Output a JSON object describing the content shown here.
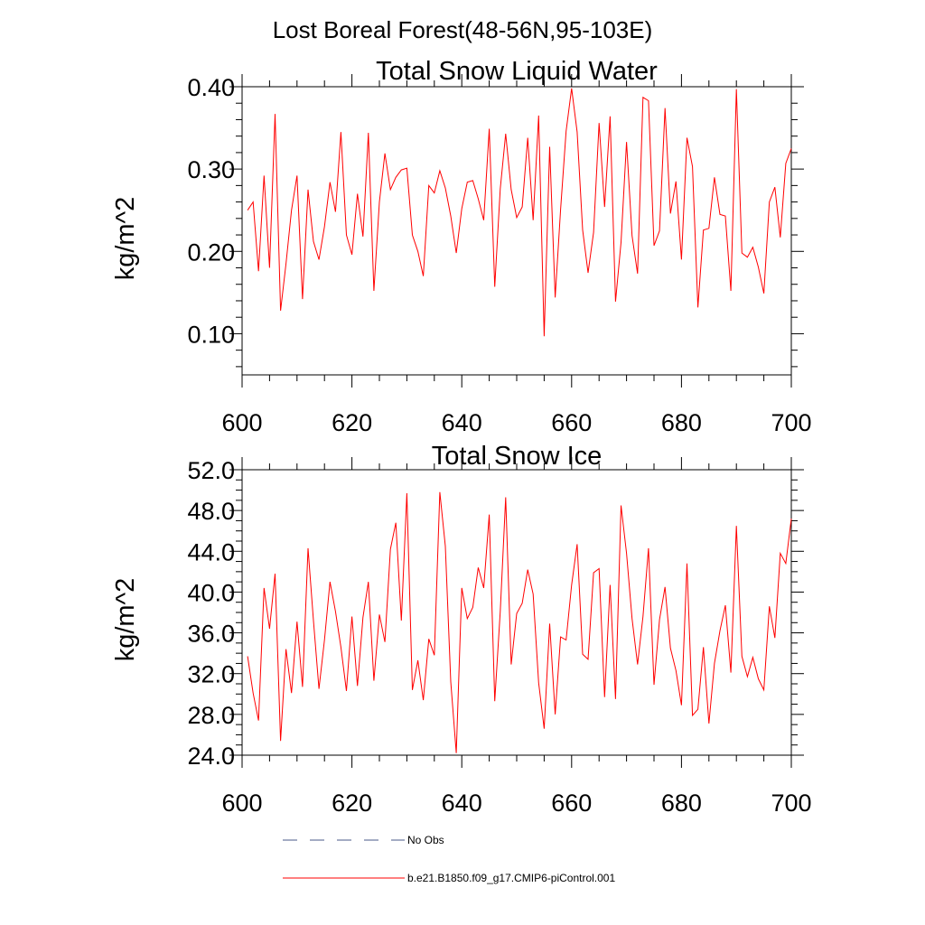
{
  "main_title": "Lost Boreal Forest(48-56N,95-103E)",
  "chart_data": [
    {
      "type": "line",
      "title": "Total Snow Liquid Water",
      "xlabel": "",
      "ylabel": "kg/m^2",
      "xlim": [
        600,
        700
      ],
      "ylim": [
        0.05,
        0.4
      ],
      "x_ticks": [
        600,
        620,
        640,
        660,
        680,
        700
      ],
      "x_tick_labels": [
        "600",
        "620",
        "640",
        "660",
        "680",
        "700"
      ],
      "y_ticks": [
        0.1,
        0.2,
        0.3,
        0.4
      ],
      "y_tick_labels": [
        "0.10",
        "0.20",
        "0.30",
        "0.40"
      ],
      "series": [
        {
          "name": "b.e21.B1850.f09_g17.CMIP6-piControl.001",
          "color": "#ff0000",
          "x": [
            601,
            602,
            603,
            604,
            605,
            606,
            607,
            608,
            609,
            610,
            611,
            612,
            613,
            614,
            615,
            616,
            617,
            618,
            619,
            620,
            621,
            622,
            623,
            624,
            625,
            626,
            627,
            628,
            629,
            630,
            631,
            632,
            633,
            634,
            635,
            636,
            637,
            638,
            639,
            640,
            641,
            642,
            643,
            644,
            645,
            646,
            647,
            648,
            649,
            650,
            651,
            652,
            653,
            654,
            655,
            656,
            657,
            658,
            659,
            660,
            661,
            662,
            663,
            664,
            665,
            666,
            667,
            668,
            669,
            670,
            671,
            672,
            673,
            674,
            675,
            676,
            677,
            678,
            679,
            680,
            681,
            682,
            683,
            684,
            685,
            686,
            687,
            688,
            689,
            690,
            691,
            692,
            693,
            694,
            695,
            696,
            697,
            698,
            699,
            700
          ],
          "values": [
            0.25,
            0.26,
            0.176,
            0.292,
            0.18,
            0.367,
            0.128,
            0.185,
            0.25,
            0.292,
            0.142,
            0.275,
            0.212,
            0.19,
            0.23,
            0.284,
            0.248,
            0.345,
            0.22,
            0.196,
            0.27,
            0.218,
            0.344,
            0.152,
            0.26,
            0.319,
            0.275,
            0.29,
            0.299,
            0.301,
            0.22,
            0.2,
            0.17,
            0.28,
            0.271,
            0.298,
            0.277,
            0.243,
            0.198,
            0.252,
            0.284,
            0.286,
            0.264,
            0.238,
            0.349,
            0.157,
            0.276,
            0.343,
            0.275,
            0.241,
            0.254,
            0.338,
            0.238,
            0.365,
            0.097,
            0.327,
            0.144,
            0.251,
            0.346,
            0.398,
            0.345,
            0.226,
            0.174,
            0.223,
            0.356,
            0.254,
            0.364,
            0.139,
            0.211,
            0.333,
            0.219,
            0.173,
            0.387,
            0.383,
            0.207,
            0.225,
            0.374,
            0.246,
            0.285,
            0.19,
            0.338,
            0.303,
            0.132,
            0.226,
            0.228,
            0.29,
            0.245,
            0.243,
            0.152,
            0.397,
            0.198,
            0.193,
            0.205,
            0.181,
            0.149,
            0.26,
            0.278,
            0.217,
            0.307,
            0.325
          ]
        }
      ]
    },
    {
      "type": "line",
      "title": "Total Snow Ice",
      "xlabel": "",
      "ylabel": "kg/m^2",
      "xlim": [
        600,
        700
      ],
      "ylim": [
        24.0,
        52.0
      ],
      "x_ticks": [
        600,
        620,
        640,
        660,
        680,
        700
      ],
      "x_tick_labels": [
        "600",
        "620",
        "640",
        "660",
        "680",
        "700"
      ],
      "y_ticks": [
        24.0,
        28.0,
        32.0,
        36.0,
        40.0,
        44.0,
        48.0,
        52.0
      ],
      "y_tick_labels": [
        "24.0",
        "28.0",
        "32.0",
        "36.0",
        "40.0",
        "44.0",
        "48.0",
        "52.0"
      ],
      "series": [
        {
          "name": "b.e21.B1850.f09_g17.CMIP6-piControl.001",
          "color": "#ff0000",
          "x": [
            601,
            602,
            603,
            604,
            605,
            606,
            607,
            608,
            609,
            610,
            611,
            612,
            613,
            614,
            615,
            616,
            617,
            618,
            619,
            620,
            621,
            622,
            623,
            624,
            625,
            626,
            627,
            628,
            629,
            630,
            631,
            632,
            633,
            634,
            635,
            636,
            637,
            638,
            639,
            640,
            641,
            642,
            643,
            644,
            645,
            646,
            647,
            648,
            649,
            650,
            651,
            652,
            653,
            654,
            655,
            656,
            657,
            658,
            659,
            660,
            661,
            662,
            663,
            664,
            665,
            666,
            667,
            668,
            669,
            670,
            671,
            672,
            673,
            674,
            675,
            676,
            677,
            678,
            679,
            680,
            681,
            682,
            683,
            684,
            685,
            686,
            687,
            688,
            689,
            690,
            691,
            692,
            693,
            694,
            695,
            696,
            697,
            698,
            699,
            700
          ],
          "values": [
            33.7,
            30.1,
            27.4,
            40.4,
            36.4,
            41.8,
            25.4,
            34.4,
            30.1,
            37.1,
            30.7,
            44.3,
            37.2,
            30.5,
            35.3,
            41.0,
            38.1,
            34.6,
            30.3,
            37.6,
            30.8,
            37.5,
            41.0,
            31.3,
            37.8,
            35.1,
            44.2,
            46.8,
            37.2,
            49.7,
            30.4,
            33.3,
            29.4,
            35.4,
            33.8,
            49.8,
            44.5,
            31.2,
            24.2,
            40.4,
            37.4,
            38.5,
            42.4,
            40.4,
            47.6,
            29.3,
            38.1,
            49.3,
            32.9,
            37.9,
            38.9,
            42.2,
            39.8,
            31.1,
            26.6,
            36.9,
            28.0,
            35.6,
            35.3,
            40.7,
            44.7,
            33.9,
            33.4,
            41.9,
            42.3,
            29.7,
            40.7,
            29.5,
            48.5,
            43.8,
            37.4,
            32.9,
            37.6,
            44.3,
            30.9,
            37.3,
            40.5,
            34.5,
            32.3,
            28.9,
            42.8,
            27.9,
            28.5,
            34.6,
            27.1,
            33.0,
            36.2,
            38.7,
            32.1,
            46.5,
            33.7,
            31.7,
            33.6,
            31.5,
            30.4,
            38.6,
            35.5,
            43.8,
            42.8,
            47.2
          ]
        }
      ]
    }
  ],
  "legend": {
    "items": [
      {
        "label": "No Obs",
        "color": "#4a5a8a",
        "style": "dashed"
      },
      {
        "label": "b.e21.B1850.f09_g17.CMIP6-piControl.001",
        "color": "#ff0000",
        "style": "solid"
      }
    ]
  }
}
